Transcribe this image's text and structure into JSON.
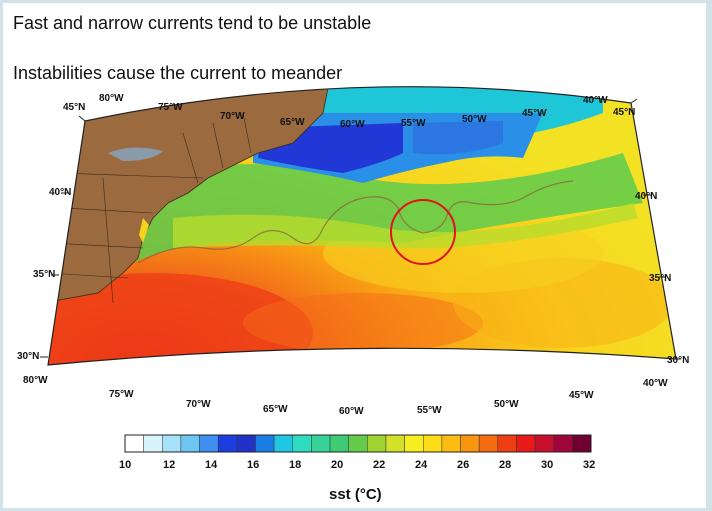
{
  "slide": {
    "line1": "Fast and narrow currents tend to be unstable",
    "line2": "Instabilities cause the current to meander"
  },
  "map": {
    "top_lon_labels": [
      "80°W",
      "75°W",
      "70°W",
      "65°W",
      "60°W",
      "55°W",
      "50°W",
      "45°W",
      "40°W"
    ],
    "bottom_lon_labels": [
      "80°W",
      "75°W",
      "70°W",
      "65°W",
      "60°W",
      "55°W",
      "50°W",
      "45°W",
      "40°W"
    ],
    "left_lat_labels": [
      "45°N",
      "40°N",
      "35°N",
      "30°N"
    ],
    "right_lat_labels": [
      "45°N",
      "40°N",
      "35°N",
      "30°N"
    ],
    "highlight": "red circle around meander"
  },
  "colorbar": {
    "ticks": [
      "10",
      "12",
      "14",
      "16",
      "18",
      "20",
      "22",
      "24",
      "26",
      "28",
      "30",
      "32"
    ],
    "title": "sst (°C)",
    "colors": [
      "#ffffff",
      "#d9f3fb",
      "#a8e2f8",
      "#6ec6f3",
      "#3e8ff0",
      "#1e3de0",
      "#2232c9",
      "#1a7de6",
      "#1fc7e3",
      "#2fdcc0",
      "#36d39a",
      "#3ecb73",
      "#64cc4a",
      "#9fd431",
      "#d3e02a",
      "#f7ee22",
      "#fddd16",
      "#fbbd12",
      "#f89610",
      "#f36c10",
      "#ef3e12",
      "#e81a1a",
      "#c80f2c",
      "#a0063c",
      "#700030"
    ]
  }
}
